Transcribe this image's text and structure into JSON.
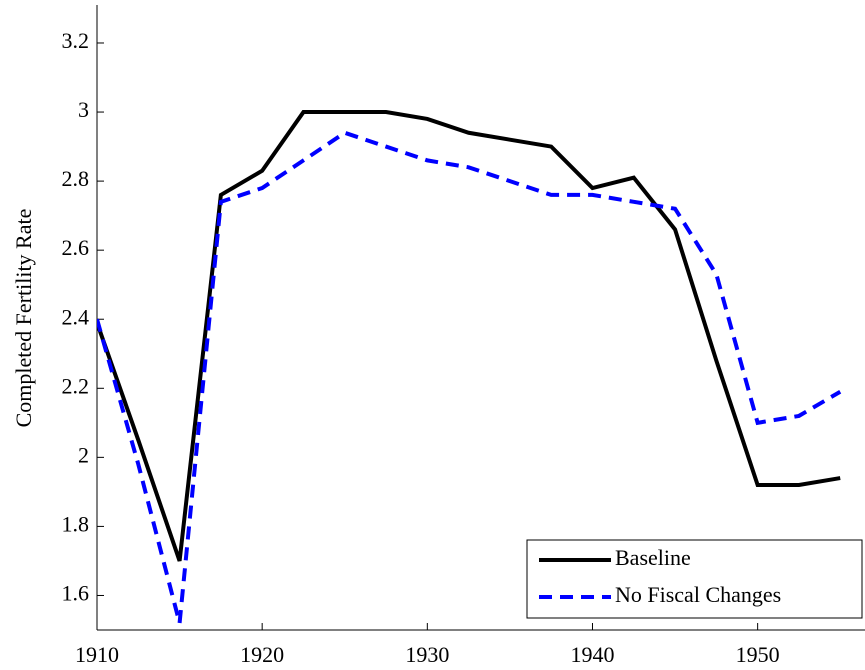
{
  "chart_data": {
    "type": "line",
    "y_label": "Completed Fertility Rate",
    "x": [
      1910,
      1912.5,
      1915,
      1917.5,
      1920,
      1922.5,
      1925,
      1927.5,
      1930,
      1932.5,
      1935,
      1937.5,
      1940,
      1942.5,
      1945,
      1947.5,
      1950,
      1952.5,
      1955
    ],
    "series": [
      {
        "name": "Baseline",
        "color": "#000000",
        "dash": false,
        "values": [
          2.39,
          2.05,
          1.7,
          2.76,
          2.83,
          3.0,
          3.0,
          3.0,
          2.98,
          2.94,
          2.92,
          2.9,
          2.78,
          2.81,
          2.66,
          2.28,
          1.92,
          1.92,
          1.94
        ]
      },
      {
        "name": "No Fiscal Changes",
        "color": "#0000ff",
        "dash": true,
        "values": [
          2.4,
          1.98,
          1.52,
          2.74,
          2.78,
          2.86,
          2.94,
          2.9,
          2.86,
          2.84,
          2.8,
          2.76,
          2.76,
          2.74,
          2.72,
          2.53,
          2.1,
          2.12,
          2.19
        ]
      }
    ],
    "xlim": [
      1910,
      1956.5
    ],
    "xticks": [
      1910,
      1920,
      1930,
      1940,
      1950
    ],
    "ylim": [
      1.5,
      3.31
    ],
    "yticks": [
      1.6,
      1.8,
      2,
      2.2,
      2.4,
      2.6,
      2.8,
      3,
      3.2
    ],
    "grid": false,
    "legend": "lower right"
  }
}
